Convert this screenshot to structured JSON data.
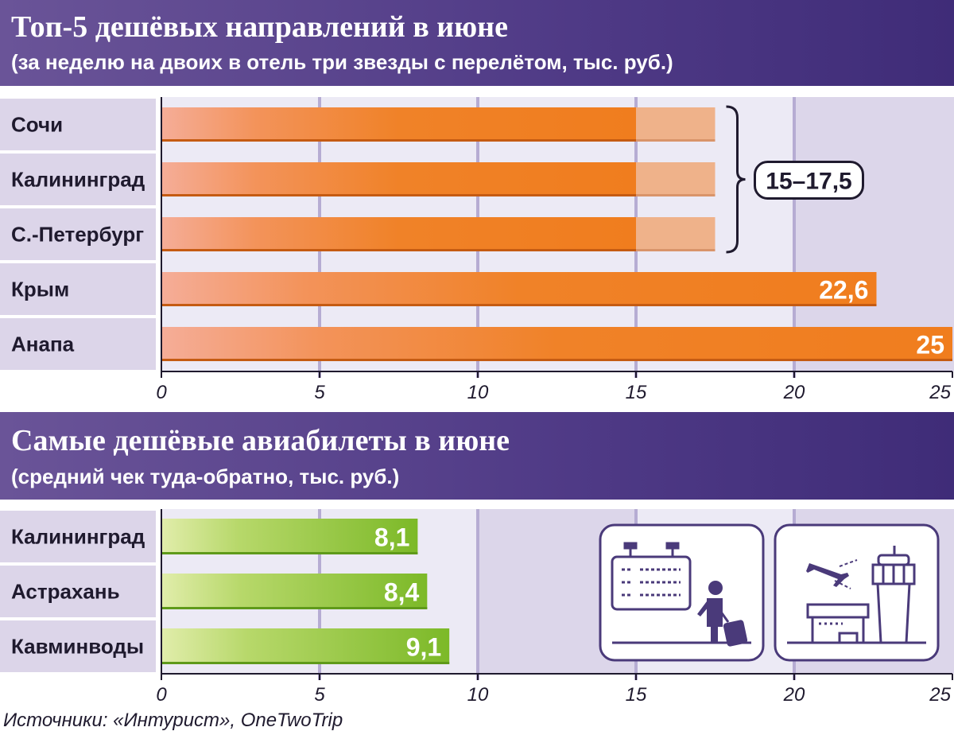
{
  "chart_data": [
    {
      "type": "bar",
      "orientation": "horizontal",
      "title": "Топ-5 дешёвых направлений в июне",
      "subtitle": "(за неделю на двоих в отель три звезды с перелётом, тыс. руб.)",
      "categories": [
        "Сочи",
        "Калининград",
        "С.-Петербург",
        "Крым",
        "Анапа"
      ],
      "values": [
        15,
        15,
        15,
        22.6,
        25
      ],
      "range_upper": [
        17.5,
        17.5,
        17.5,
        null,
        null
      ],
      "value_labels": [
        "",
        "",
        "",
        "22,6",
        "25"
      ],
      "annotation": "15–17,5",
      "xlim": [
        0,
        25
      ],
      "xticks": [
        0,
        5,
        10,
        15,
        20,
        25
      ],
      "grid": true,
      "bar_color": "#f08228",
      "range_color": "#efb28a"
    },
    {
      "type": "bar",
      "orientation": "horizontal",
      "title": "Самые дешёвые авиабилеты в июне",
      "subtitle": "(средний чек туда-обратно, тыс. руб.)",
      "categories": [
        "Калининград",
        "Астрахань",
        "Кавминводы"
      ],
      "values": [
        8.1,
        8.4,
        9.1
      ],
      "value_labels": [
        "8,1",
        "8,4",
        "9,1"
      ],
      "xlim": [
        0,
        25
      ],
      "xticks": [
        0,
        5,
        10,
        15,
        20,
        25
      ],
      "grid": true,
      "bar_color": "#84bf2c"
    }
  ],
  "colors": {
    "banner": "#4f3a86",
    "label_bg": "#dcd5e9",
    "plot_bg": "#eceaf5",
    "plot_band": "#dcd6ea",
    "grid": "#b6acd3",
    "icon": "#4a3a7a"
  },
  "icons": [
    "departure-board-icon",
    "traveler-with-suitcase-icon",
    "airplane-icon",
    "control-tower-icon"
  ],
  "source": "Источники: «Интурист», OneTwoTrip"
}
